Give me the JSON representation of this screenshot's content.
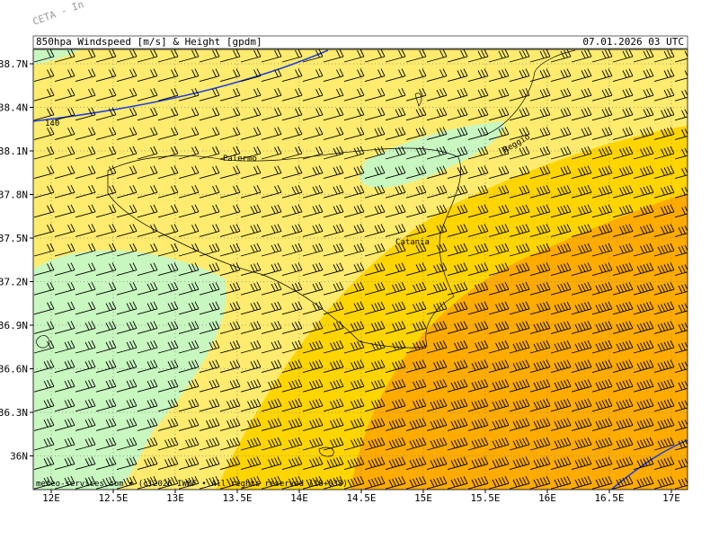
{
  "watermark": "CETA - In",
  "header": {
    "title": "850hpa Windspeed [m/s] & Height [gpdm]",
    "datetime": "07.01.2026 03 UTC"
  },
  "axes": {
    "lat_labels": [
      "38.7N",
      "38.4N",
      "38.1N",
      "37.8N",
      "37.5N",
      "37.2N",
      "36.9N",
      "36.6N",
      "36.3N",
      "36N"
    ],
    "lon_labels": [
      "12E",
      "12.5E",
      "13E",
      "13.5E",
      "14E",
      "14.5E",
      "15E",
      "15.5E",
      "16E",
      "16.5E",
      "17E"
    ]
  },
  "places": [
    "Palermo",
    "Catania",
    "Reggio"
  ],
  "contour_label": "140",
  "footer": "meteo-services.com • (c)2026 IWKF • All rights reserved (18+033)"
}
